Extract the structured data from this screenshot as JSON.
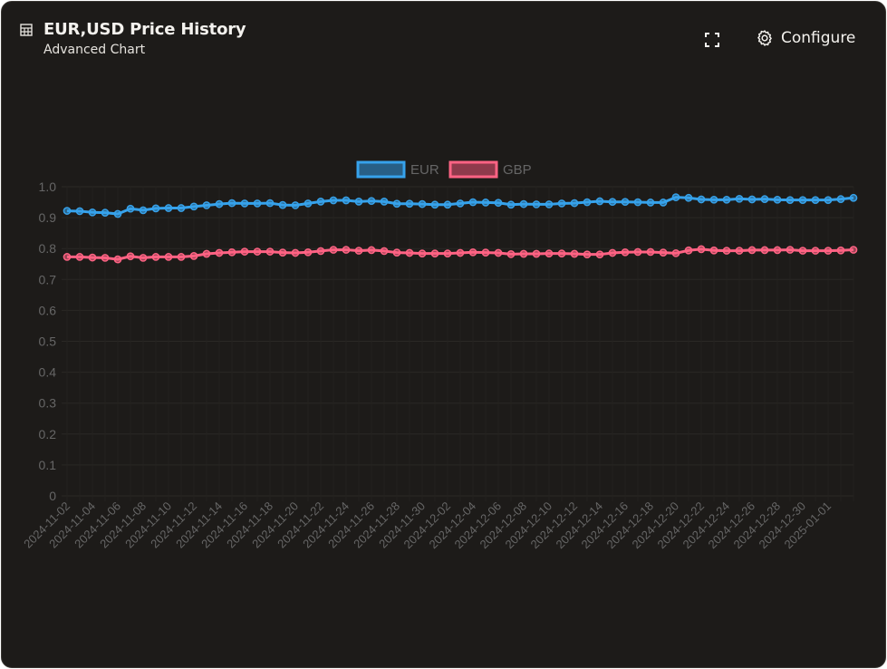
{
  "header": {
    "title": "EUR,USD Price History",
    "subtitle": "Advanced Chart",
    "configure_label": "Configure"
  },
  "icons": {
    "table": "table-grid-icon",
    "expand": "fullscreen-icon",
    "settings": "gear-icon"
  },
  "colors": {
    "background": "#1d1b19",
    "eur": "#36a2eb",
    "gbp": "#ff6384",
    "axis_text": "#666666"
  },
  "chart_data": {
    "type": "line",
    "ylim": [
      0,
      1.0
    ],
    "yticks": [
      "1.0",
      "0.9",
      "0.8",
      "0.7",
      "0.6",
      "0.5",
      "0.4",
      "0.3",
      "0.2",
      "0.1",
      "0"
    ],
    "legend_position": "top-center",
    "x_tick_labels": [
      "2024-11-02",
      "2024-11-04",
      "2024-11-06",
      "2024-11-08",
      "2024-11-10",
      "2024-11-12",
      "2024-11-14",
      "2024-11-16",
      "2024-11-18",
      "2024-11-20",
      "2024-11-22",
      "2024-11-24",
      "2024-11-26",
      "2024-11-28",
      "2024-11-30",
      "2024-12-02",
      "2024-12-04",
      "2024-12-06",
      "2024-12-08",
      "2024-12-10",
      "2024-12-12",
      "2024-12-14",
      "2024-12-16",
      "2024-12-18",
      "2024-12-20",
      "2024-12-22",
      "2024-12-24",
      "2024-12-26",
      "2024-12-28",
      "2024-12-30",
      "2025-01-01"
    ],
    "series": [
      {
        "name": "EUR",
        "values": [
          0.922,
          0.921,
          0.917,
          0.916,
          0.912,
          0.929,
          0.924,
          0.93,
          0.931,
          0.931,
          0.936,
          0.94,
          0.944,
          0.947,
          0.946,
          0.946,
          0.947,
          0.941,
          0.94,
          0.946,
          0.952,
          0.956,
          0.956,
          0.952,
          0.954,
          0.952,
          0.945,
          0.945,
          0.944,
          0.942,
          0.942,
          0.946,
          0.95,
          0.949,
          0.948,
          0.942,
          0.944,
          0.943,
          0.943,
          0.946,
          0.947,
          0.95,
          0.953,
          0.951,
          0.951,
          0.95,
          0.949,
          0.949,
          0.966,
          0.964,
          0.959,
          0.958,
          0.958,
          0.961,
          0.959,
          0.96,
          0.958,
          0.957,
          0.957,
          0.957,
          0.957,
          0.96,
          0.964
        ]
      },
      {
        "name": "GBP",
        "values": [
          0.773,
          0.773,
          0.771,
          0.77,
          0.765,
          0.775,
          0.77,
          0.773,
          0.773,
          0.773,
          0.776,
          0.783,
          0.786,
          0.788,
          0.79,
          0.79,
          0.79,
          0.787,
          0.786,
          0.788,
          0.792,
          0.796,
          0.796,
          0.793,
          0.795,
          0.792,
          0.787,
          0.786,
          0.784,
          0.784,
          0.784,
          0.786,
          0.788,
          0.787,
          0.786,
          0.782,
          0.783,
          0.783,
          0.784,
          0.784,
          0.783,
          0.781,
          0.781,
          0.786,
          0.788,
          0.789,
          0.789,
          0.787,
          0.785,
          0.794,
          0.798,
          0.794,
          0.793,
          0.793,
          0.795,
          0.795,
          0.795,
          0.796,
          0.793,
          0.793,
          0.793,
          0.794,
          0.796
        ]
      }
    ]
  }
}
